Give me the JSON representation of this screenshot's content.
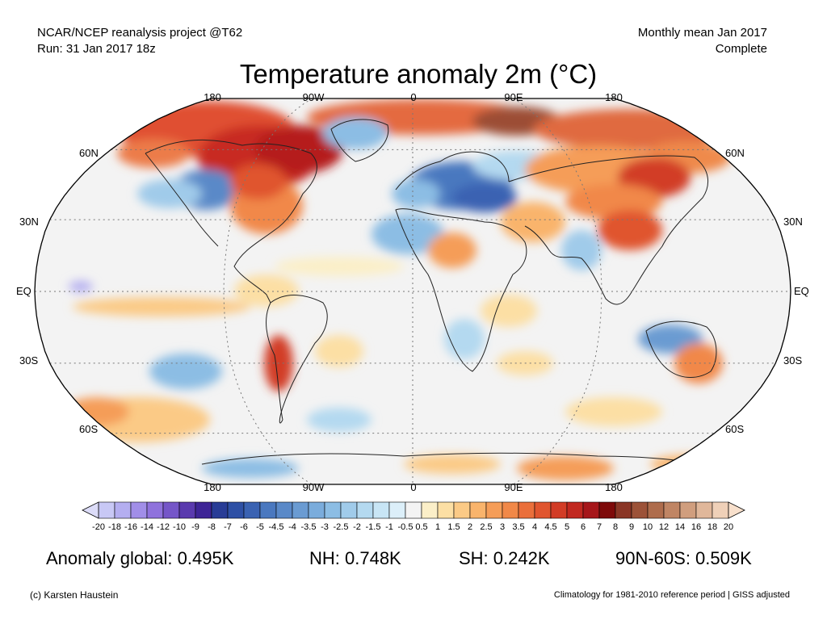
{
  "header": {
    "source_line1": "NCAR/NCEP reanalysis project @T62",
    "source_line2": "Run: 31 Jan 2017 18z",
    "period_line1": "Monthly mean Jan 2017",
    "period_line2": "Complete"
  },
  "title": "Temperature anomaly 2m (°C)",
  "longitude_labels_top": [
    "180",
    "90W",
    "0",
    "90E",
    "180"
  ],
  "longitude_labels_bottom": [
    "180",
    "90W",
    "0",
    "90E",
    "180"
  ],
  "latitude_labels_left": [
    "60N",
    "30N",
    "EQ",
    "30S",
    "60S"
  ],
  "latitude_labels_right": [
    "60N",
    "30N",
    "EQ",
    "30S",
    "60S"
  ],
  "colorbar": {
    "tick_labels": [
      "-20",
      "-18",
      "-16",
      "-14",
      "-12",
      "-10",
      "-9",
      "-8",
      "-7",
      "-6",
      "-5",
      "-4.5",
      "-4",
      "-3.5",
      "-3",
      "-2.5",
      "-2",
      "-1.5",
      "-1",
      "-0.5",
      "0.5",
      "1",
      "1.5",
      "2",
      "2.5",
      "3",
      "3.5",
      "4",
      "4.5",
      "5",
      "6",
      "7",
      "8",
      "9",
      "10",
      "12",
      "14",
      "16",
      "18",
      "20"
    ],
    "colors": [
      "#c8c8f5",
      "#b4aef0",
      "#a18ee8",
      "#8f72dc",
      "#7556c8",
      "#5a3aae",
      "#3e2596",
      "#283c96",
      "#2e50a5",
      "#3a62b2",
      "#4a78bf",
      "#5a89c8",
      "#6a9bd2",
      "#7aacdc",
      "#8cbde4",
      "#a0cbea",
      "#b4d9f0",
      "#c8e5f5",
      "#dceff9",
      "#f3f3f3",
      "#fbefc8",
      "#fcdfa4",
      "#fbca86",
      "#f9b46c",
      "#f59d58",
      "#f18848",
      "#ea6f3b",
      "#e0552f",
      "#d23c26",
      "#c12820",
      "#a6161a",
      "#7e0a0a",
      "#8a3626",
      "#9c5238",
      "#ae6c4c",
      "#c08564",
      "#d09e7e",
      "#e0b79a",
      "#efd0b8"
    ],
    "left_extension_color": "#dcdcf8",
    "right_extension_color": "#f8e0cc"
  },
  "stats": {
    "global": "Anomaly global: 0.495K",
    "nh": "NH: 0.748K",
    "sh": "SH: 0.242K",
    "arctic": "90N-60S: 0.509K"
  },
  "footer": {
    "credit": "(c) Karsten Haustein",
    "note": "Climatology for 1981-2010 reference period | GISS adjusted"
  }
}
